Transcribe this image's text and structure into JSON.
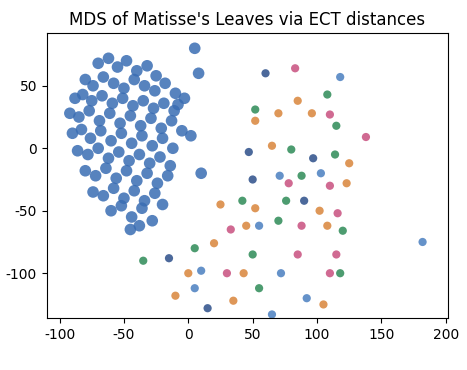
{
  "chart_data": {
    "type": "scatter",
    "title": "MDS of Matisse's Leaves via ECT distances",
    "xlim": [
      -110,
      202
    ],
    "ylim": [
      -136,
      92
    ],
    "xticks": [
      -100,
      -50,
      0,
      50,
      100,
      150,
      200
    ],
    "yticks": [
      -100,
      -50,
      0,
      50
    ],
    "grid": false,
    "marker": "o",
    "series": [
      {
        "color": "#3a6db3",
        "x": [
          -70,
          -62,
          -55,
          -48,
          -40,
          -32,
          -25,
          -80,
          -74,
          -66,
          -58,
          -50,
          -42,
          -34,
          -26,
          -18,
          -10,
          -88,
          -82,
          -75,
          -67,
          -59,
          -51,
          -43,
          -35,
          -27,
          -19,
          -11,
          -3,
          -92,
          -85,
          -77,
          -69,
          -61,
          -53,
          -45,
          -37,
          -29,
          -21,
          -13,
          -5,
          -90,
          -83,
          -76,
          -68,
          -60,
          -52,
          -44,
          -36,
          -28,
          -20,
          -12,
          -86,
          -78,
          -70,
          -62,
          -54,
          -46,
          -38,
          -30,
          -22,
          -14,
          -80,
          -72,
          -64,
          -56,
          -48,
          -40,
          -32,
          -24,
          -16,
          -74,
          -66,
          -58,
          -50,
          -42,
          -34,
          -26,
          -60,
          -52,
          -44,
          -36,
          -28,
          -45,
          -38,
          5,
          8,
          -8,
          2,
          -20,
          10
        ],
        "y": [
          68,
          72,
          65,
          70,
          62,
          66,
          58,
          55,
          50,
          57,
          52,
          48,
          55,
          50,
          46,
          52,
          44,
          40,
          43,
          38,
          42,
          36,
          40,
          34,
          38,
          32,
          36,
          30,
          40,
          28,
          25,
          30,
          22,
          28,
          20,
          26,
          18,
          24,
          16,
          22,
          14,
          12,
          15,
          8,
          14,
          6,
          12,
          4,
          10,
          2,
          8,
          0,
          -2,
          -5,
          0,
          -8,
          -3,
          -10,
          -5,
          -12,
          -7,
          -14,
          -18,
          -22,
          -16,
          -24,
          -18,
          -26,
          -20,
          -28,
          -22,
          -35,
          -38,
          -32,
          -40,
          -34,
          -42,
          -36,
          -50,
          -46,
          -55,
          -48,
          -58,
          -65,
          -62,
          80,
          60,
          35,
          10,
          -45,
          -20
        ]
      },
      {
        "color": "#c8507f",
        "x": [
          83,
          110,
          138,
          78,
          110,
          116,
          33,
          88,
          85,
          115,
          30,
          110
        ],
        "y": [
          64,
          27,
          9,
          -28,
          -30,
          -52,
          -65,
          -62,
          -85,
          -85,
          -100,
          -100
        ]
      },
      {
        "color": "#d9853b",
        "x": [
          85,
          70,
          96,
          52,
          65,
          125,
          123,
          25,
          52,
          102,
          45,
          108,
          20,
          0,
          -10,
          35,
          43,
          105
        ],
        "y": [
          38,
          28,
          28,
          22,
          2,
          -12,
          -28,
          -45,
          -48,
          -50,
          -62,
          -62,
          -76,
          -100,
          -118,
          -122,
          -100,
          -125
        ]
      },
      {
        "color": "#2e8b57",
        "x": [
          108,
          52,
          115,
          80,
          114,
          88,
          42,
          76,
          70,
          120,
          5,
          -35,
          50,
          55,
          118
        ],
        "y": [
          43,
          31,
          18,
          -1,
          -5,
          -22,
          -42,
          -42,
          -58,
          -66,
          -80,
          -90,
          -85,
          -112,
          -100
        ]
      },
      {
        "color": "#2c4f8a",
        "x": [
          60,
          97,
          50,
          90,
          -15,
          15,
          47
        ],
        "y": [
          60,
          -8,
          -25,
          -42,
          -88,
          -128,
          -3
        ]
      },
      {
        "color": "#4a7fc0",
        "x": [
          118,
          71,
          103,
          55,
          182,
          10,
          72,
          5,
          92,
          65
        ],
        "y": [
          57,
          -22,
          -20,
          -62,
          -75,
          -98,
          -100,
          -112,
          -120,
          -133
        ]
      }
    ]
  }
}
